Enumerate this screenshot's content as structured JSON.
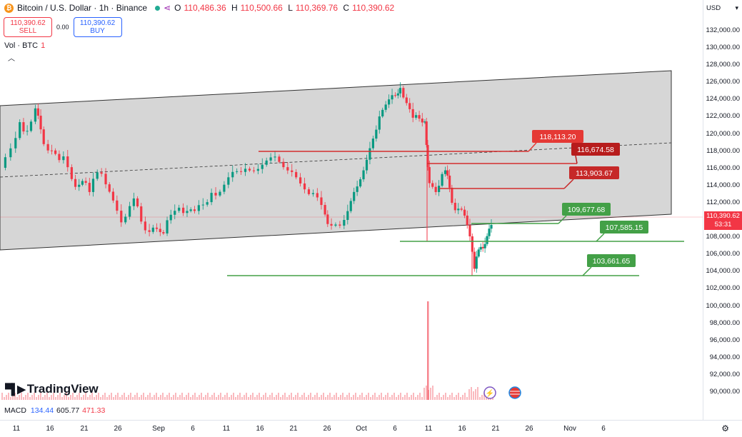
{
  "header": {
    "symbol_title": "Bitcoin / U.S. Dollar · 1h · Binance",
    "open_label": "O",
    "open": "110,486.36",
    "high_label": "H",
    "high": "110,500.66",
    "low_label": "L",
    "low": "110,369.76",
    "close_label": "C",
    "close": "110,390.62"
  },
  "trade": {
    "sell_price": "110,390.62",
    "sell_label": "SELL",
    "spread": "0.00",
    "buy_price": "110,390.62",
    "buy_label": "BUY"
  },
  "volume_indicator": {
    "label": "Vol · BTC",
    "value": "1"
  },
  "price_axis": {
    "currency": "USD",
    "ticks": [
      "132,000.00",
      "130,000.00",
      "128,000.00",
      "126,000.00",
      "124,000.00",
      "122,000.00",
      "120,000.00",
      "118,000.00",
      "116,000.00",
      "114,000.00",
      "112,000.00",
      "110,000.00",
      "108,000.00",
      "106,000.00",
      "104,000.00",
      "102,000.00",
      "100,000.00",
      "98,000.00",
      "96,000.00",
      "94,000.00",
      "92,000.00",
      "90,000.00"
    ],
    "current_price": "110,390.62",
    "countdown": "53:31"
  },
  "time_axis": {
    "ticks": [
      "11",
      "16",
      "21",
      "26",
      "Sep",
      "6",
      "11",
      "16",
      "21",
      "26",
      "Oct",
      "6",
      "11",
      "16",
      "21",
      "26",
      "Nov",
      "6"
    ]
  },
  "annotations": {
    "resistance_1": "118,113.20",
    "resistance_2": "116,674.58",
    "resistance_3": "113,903.67",
    "support_1": "109,677.68",
    "support_2": "107,585.15",
    "support_3": "103,661.65"
  },
  "macd": {
    "label": "MACD",
    "v1": "134.44",
    "v2": "605.77",
    "v3": "471.33"
  },
  "logo": {
    "text": "TradingView"
  },
  "colors": {
    "up": "#089981",
    "down": "#f23645",
    "channel_fill": "#d1d1d1",
    "resistance": "#d32f2f",
    "support": "#43a047",
    "accent": "#2962ff"
  },
  "chart_data": {
    "type": "candlestick",
    "x": [
      "Aug 11",
      "Aug 16",
      "Aug 21",
      "Aug 26",
      "Sep 1",
      "Sep 6",
      "Sep 11",
      "Sep 16",
      "Sep 21",
      "Sep 26",
      "Oct 1",
      "Oct 6",
      "Oct 11",
      "Oct 16",
      "Oct 21"
    ],
    "close": [
      119000,
      118000,
      113000,
      111000,
      109000,
      111000,
      115000,
      116500,
      113000,
      109500,
      117000,
      124500,
      112000,
      108000,
      110390
    ],
    "ylim": [
      89000,
      133000
    ],
    "horizontal_levels": [
      118113.2,
      116674.58,
      113903.67,
      109677.68,
      107585.15,
      103661.65
    ]
  }
}
